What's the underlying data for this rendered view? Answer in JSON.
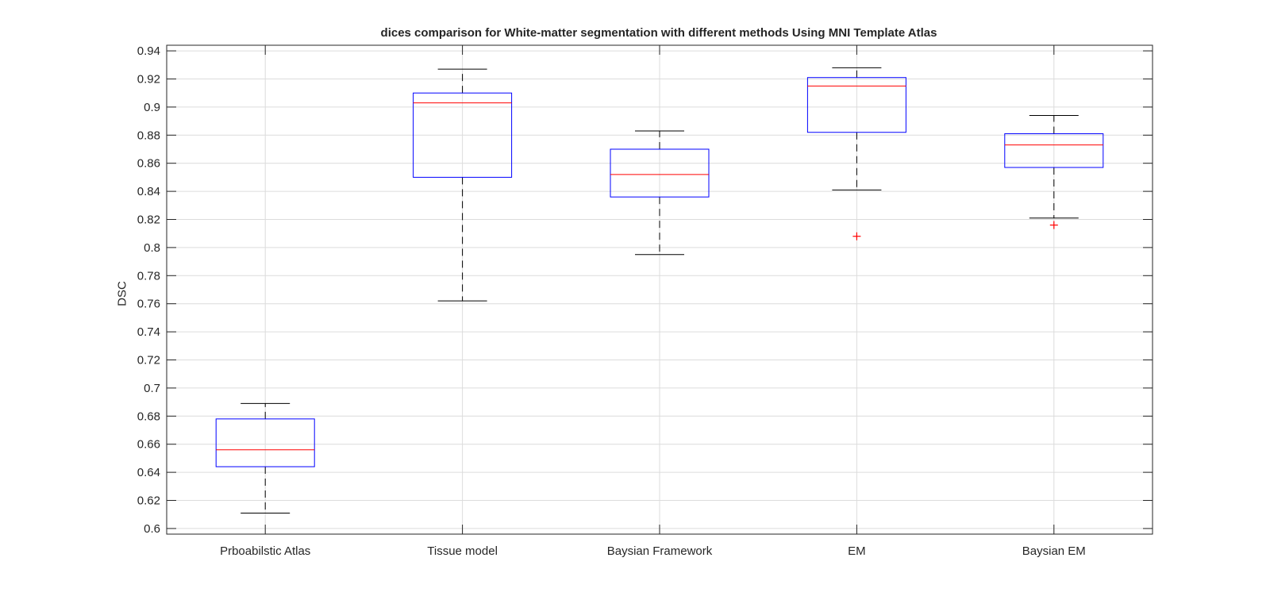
{
  "chart_data": {
    "type": "box",
    "title": "dices comparison for White-matter segmentation with different methods Using MNI Template Atlas",
    "xlabel": "",
    "ylabel": "DSC",
    "ylim": [
      0.596,
      0.944
    ],
    "yticks": [
      "0.6",
      "0.62",
      "0.64",
      "0.66",
      "0.68",
      "0.7",
      "0.72",
      "0.74",
      "0.76",
      "0.78",
      "0.8",
      "0.82",
      "0.84",
      "0.86",
      "0.88",
      "0.9",
      "0.92",
      "0.94"
    ],
    "grid": true,
    "categories": [
      "Prboabilstic Atlas",
      "Tissue model",
      "Baysian Framework",
      "EM",
      "Baysian EM"
    ],
    "boxes": [
      {
        "min": 0.611,
        "q1": 0.644,
        "median": 0.656,
        "q3": 0.678,
        "max": 0.689,
        "outliers": []
      },
      {
        "min": 0.762,
        "q1": 0.85,
        "median": 0.903,
        "q3": 0.91,
        "max": 0.927,
        "outliers": []
      },
      {
        "min": 0.795,
        "q1": 0.836,
        "median": 0.852,
        "q3": 0.87,
        "max": 0.883,
        "outliers": []
      },
      {
        "min": 0.841,
        "q1": 0.882,
        "median": 0.915,
        "q3": 0.921,
        "max": 0.928,
        "outliers": [
          0.808
        ]
      },
      {
        "min": 0.821,
        "q1": 0.857,
        "median": 0.873,
        "q3": 0.881,
        "max": 0.894,
        "outliers": [
          0.816
        ]
      }
    ],
    "colors": {
      "box": "#0000ff",
      "median": "#ff0000",
      "whisker": "#000000",
      "outlier": "#ff0000",
      "grid": "#dcdcdc",
      "axis": "#262626"
    }
  }
}
